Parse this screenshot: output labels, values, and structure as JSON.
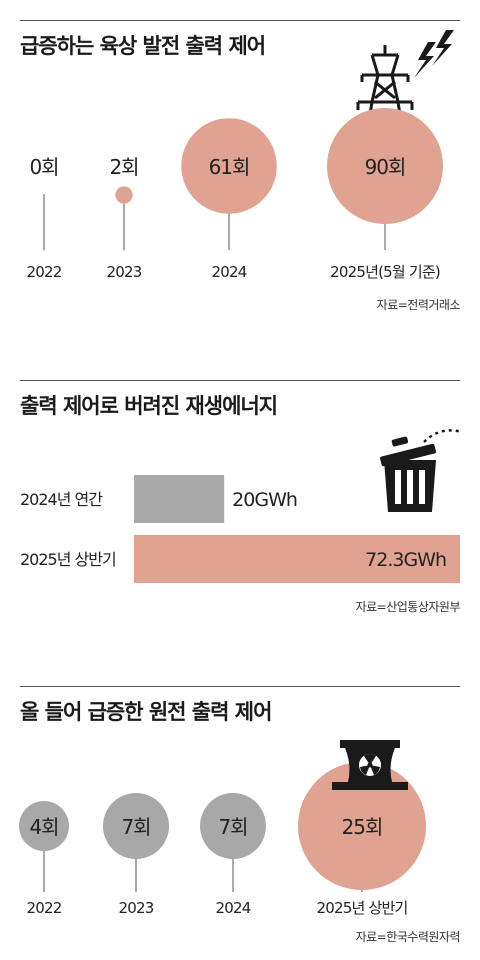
{
  "sections": [
    {
      "title": "급증하는 육상 발전 출력 제어",
      "source": "자료=전력거래소"
    },
    {
      "title": "출력 제어로 버려진 재생에너지",
      "source": "자료=산업통상자원부"
    },
    {
      "title": "올 들어 급증한 원전 출력 제어",
      "source": "자료=한국수력원자력"
    }
  ],
  "colors": {
    "accent": "#e0a291",
    "gray": "#a8a8a8",
    "dark": "#1a1a1a"
  },
  "icons": [
    "power-tower-icon",
    "trash-can-icon",
    "nuclear-plant-icon"
  ],
  "chart_data": [
    {
      "type": "bubble",
      "title": "급증하는 육상 발전 출력 제어",
      "categories": [
        "2022",
        "2023",
        "2024",
        "2025년(5월 기준)"
      ],
      "values": [
        0,
        2,
        61,
        90
      ],
      "labels": [
        "0회",
        "2회",
        "61회",
        "90회"
      ],
      "unit": "회",
      "highlight_colors": [
        "#e0a291",
        "#e0a291",
        "#e0a291",
        "#e0a291"
      ]
    },
    {
      "type": "bar",
      "orientation": "horizontal",
      "title": "출력 제어로 버려진 재생에너지",
      "categories": [
        "2024년 연간",
        "2025년 상반기"
      ],
      "values": [
        20,
        72.3
      ],
      "labels": [
        "20GWh",
        "72.3GWh"
      ],
      "unit": "GWh",
      "bar_colors": [
        "#a8a8a8",
        "#e0a291"
      ]
    },
    {
      "type": "bubble",
      "title": "올 들어 급증한 원전 출력 제어",
      "categories": [
        "2022",
        "2023",
        "2024",
        "2025년 상반기"
      ],
      "values": [
        4,
        7,
        7,
        25
      ],
      "labels": [
        "4회",
        "7회",
        "7회",
        "25회"
      ],
      "unit": "회",
      "highlight_colors": [
        "#a8a8a8",
        "#a8a8a8",
        "#a8a8a8",
        "#e0a291"
      ]
    }
  ]
}
